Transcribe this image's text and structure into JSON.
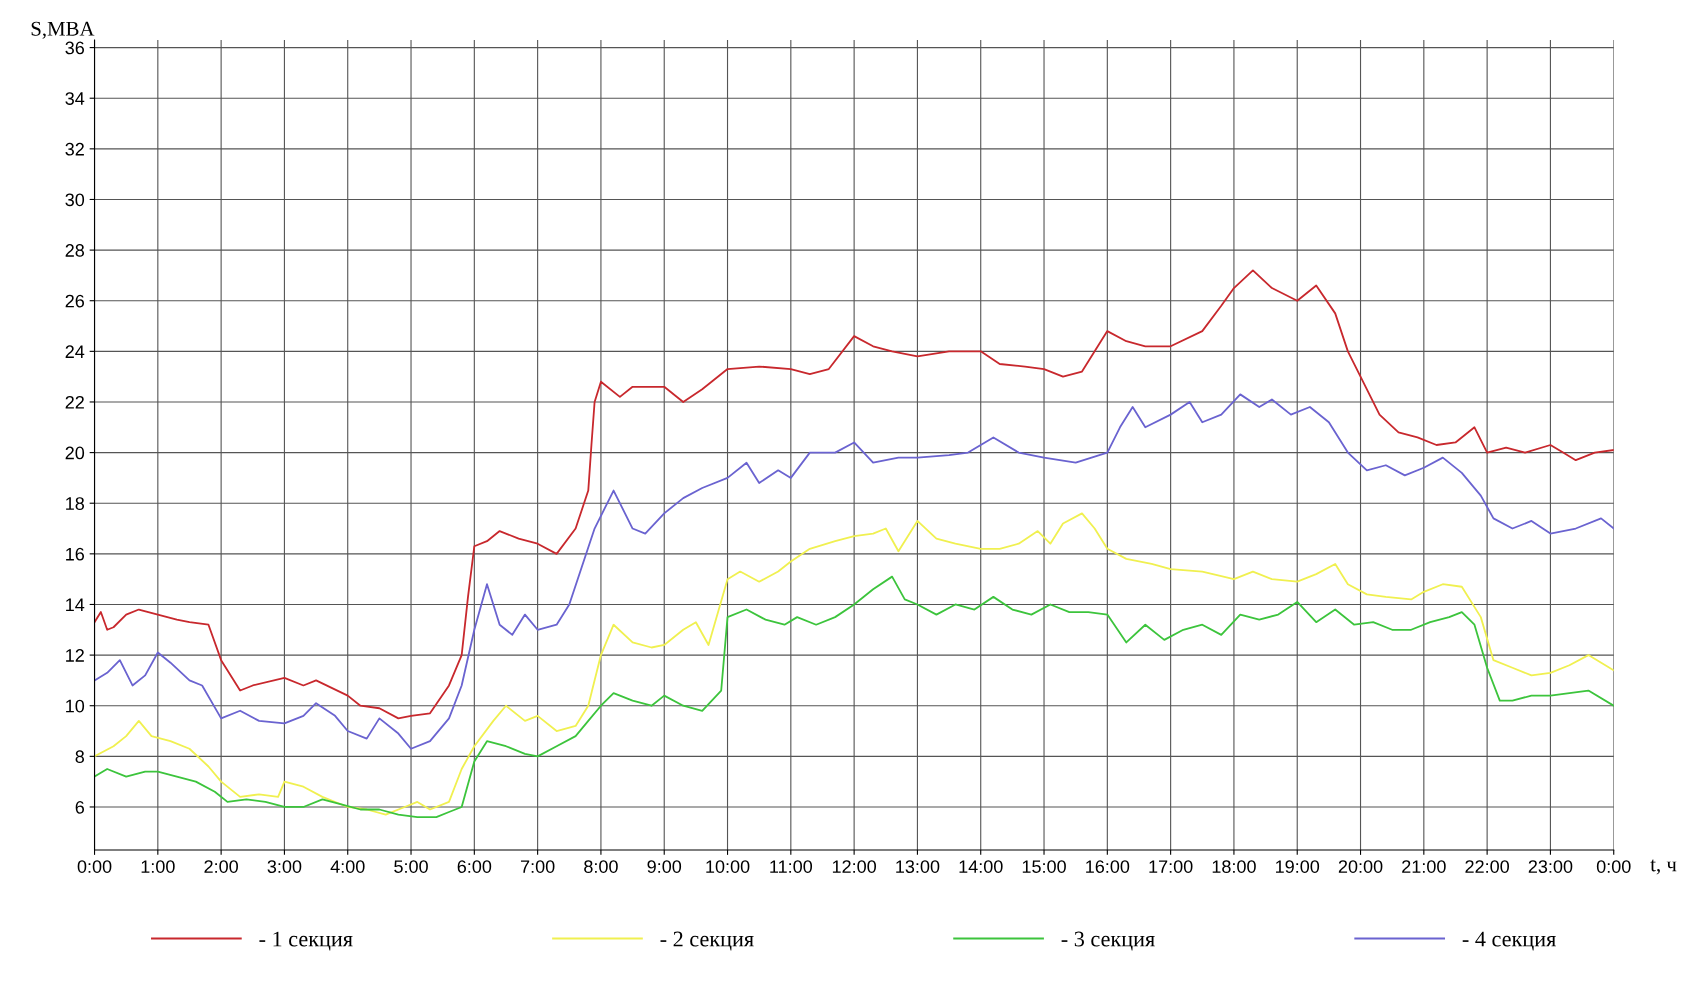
{
  "chart_data": {
    "type": "line",
    "xlabel": "t, ч",
    "ylabel": "S,MBA",
    "xlim": [
      0,
      24
    ],
    "ylim": [
      4.3,
      36.3
    ],
    "xticks": [
      {
        "value": 0,
        "label": "0:00"
      },
      {
        "value": 1,
        "label": "1:00"
      },
      {
        "value": 2,
        "label": "2:00"
      },
      {
        "value": 3,
        "label": "3:00"
      },
      {
        "value": 4,
        "label": "4:00"
      },
      {
        "value": 5,
        "label": "5:00"
      },
      {
        "value": 6,
        "label": "6:00"
      },
      {
        "value": 7,
        "label": "7:00"
      },
      {
        "value": 8,
        "label": "8:00"
      },
      {
        "value": 9,
        "label": "9:00"
      },
      {
        "value": 10,
        "label": "10:00"
      },
      {
        "value": 11,
        "label": "11:00"
      },
      {
        "value": 12,
        "label": "12:00"
      },
      {
        "value": 13,
        "label": "13:00"
      },
      {
        "value": 14,
        "label": "14:00"
      },
      {
        "value": 15,
        "label": "15:00"
      },
      {
        "value": 16,
        "label": "16:00"
      },
      {
        "value": 17,
        "label": "17:00"
      },
      {
        "value": 18,
        "label": "18:00"
      },
      {
        "value": 19,
        "label": "19:00"
      },
      {
        "value": 20,
        "label": "20:00"
      },
      {
        "value": 21,
        "label": "21:00"
      },
      {
        "value": 22,
        "label": "22:00"
      },
      {
        "value": 23,
        "label": "23:00"
      },
      {
        "value": 24,
        "label": "0:00"
      }
    ],
    "yticks": [
      6,
      8,
      10,
      12,
      14,
      16,
      18,
      20,
      22,
      24,
      26,
      28,
      30,
      32,
      34,
      36
    ],
    "grid": true,
    "legend": "bottom",
    "marker": "none",
    "line_style": "solid",
    "series": [
      {
        "name": "- 1 секция",
        "color": "#c8282d",
        "x": [
          0,
          0.1,
          0.2,
          0.3,
          0.5,
          0.7,
          1.0,
          1.3,
          1.5,
          1.8,
          2.0,
          2.3,
          2.5,
          3.0,
          3.3,
          3.5,
          4.0,
          4.2,
          4.5,
          4.8,
          5.0,
          5.3,
          5.6,
          5.8,
          5.9,
          6.0,
          6.2,
          6.4,
          6.7,
          7.0,
          7.3,
          7.6,
          7.8,
          7.85,
          7.9,
          8.0,
          8.3,
          8.5,
          9.0,
          9.3,
          9.6,
          10.0,
          10.5,
          11.0,
          11.3,
          11.6,
          12.0,
          12.3,
          12.6,
          13.0,
          13.5,
          14.0,
          14.3,
          14.7,
          15.0,
          15.3,
          15.6,
          16.0,
          16.3,
          16.6,
          17.0,
          17.5,
          17.8,
          18.0,
          18.3,
          18.6,
          19.0,
          19.3,
          19.6,
          19.8,
          20.0,
          20.3,
          20.6,
          20.9,
          21.2,
          21.5,
          21.8,
          22.0,
          22.3,
          22.6,
          23.0,
          23.2,
          23.4,
          23.7,
          24.0
        ],
        "values": [
          13.3,
          13.7,
          13.0,
          13.1,
          13.6,
          13.8,
          13.6,
          13.4,
          13.3,
          13.2,
          11.8,
          10.6,
          10.8,
          11.1,
          10.8,
          11.0,
          10.4,
          10.0,
          9.9,
          9.5,
          9.6,
          9.7,
          10.8,
          12.0,
          14.3,
          16.3,
          16.5,
          16.9,
          16.6,
          16.4,
          16.0,
          17.0,
          18.5,
          20.3,
          22.0,
          22.8,
          22.2,
          22.6,
          22.6,
          22.0,
          22.5,
          23.3,
          23.4,
          23.3,
          23.1,
          23.3,
          24.6,
          24.2,
          24.0,
          23.8,
          24.0,
          24.0,
          23.5,
          23.4,
          23.3,
          23.0,
          23.2,
          24.8,
          24.4,
          24.2,
          24.2,
          24.8,
          25.8,
          26.5,
          27.2,
          26.5,
          26.0,
          26.6,
          25.5,
          24.0,
          23.0,
          21.5,
          20.8,
          20.6,
          20.3,
          20.4,
          21.0,
          20.0,
          20.2,
          20.0,
          20.3,
          20.0,
          19.7,
          20.0,
          20.1
        ]
      },
      {
        "name": "- 2 секция",
        "color": "#f0f050",
        "x": [
          0,
          0.3,
          0.5,
          0.7,
          0.9,
          1.2,
          1.5,
          1.8,
          2.0,
          2.3,
          2.6,
          2.9,
          3.0,
          3.3,
          3.6,
          4.0,
          4.3,
          4.6,
          4.9,
          5.1,
          5.3,
          5.6,
          5.8,
          6.0,
          6.3,
          6.5,
          6.8,
          7.0,
          7.3,
          7.6,
          7.8,
          8.0,
          8.2,
          8.5,
          8.8,
          9.0,
          9.3,
          9.5,
          9.7,
          10.0,
          10.2,
          10.5,
          10.8,
          11.0,
          11.3,
          11.7,
          12.0,
          12.3,
          12.5,
          12.7,
          13.0,
          13.3,
          13.6,
          14.0,
          14.3,
          14.6,
          14.9,
          15.1,
          15.3,
          15.6,
          15.8,
          16.0,
          16.3,
          16.7,
          17.0,
          17.5,
          18.0,
          18.3,
          18.6,
          19.0,
          19.3,
          19.6,
          19.8,
          20.1,
          20.4,
          20.8,
          21.0,
          21.3,
          21.6,
          21.9,
          22.1,
          22.4,
          22.7,
          23.0,
          23.3,
          23.6,
          24.0
        ],
        "values": [
          8.0,
          8.4,
          8.8,
          9.4,
          8.8,
          8.6,
          8.3,
          7.6,
          7.0,
          6.4,
          6.5,
          6.4,
          7.0,
          6.8,
          6.4,
          6.0,
          5.9,
          5.7,
          6.0,
          6.2,
          5.9,
          6.2,
          7.5,
          8.4,
          9.4,
          10.0,
          9.4,
          9.6,
          9.0,
          9.2,
          10.0,
          12.0,
          13.2,
          12.5,
          12.3,
          12.4,
          13.0,
          13.3,
          12.4,
          15.0,
          15.3,
          14.9,
          15.3,
          15.7,
          16.2,
          16.5,
          16.7,
          16.8,
          17.0,
          16.1,
          17.3,
          16.6,
          16.4,
          16.2,
          16.2,
          16.4,
          16.9,
          16.4,
          17.2,
          17.6,
          17.0,
          16.2,
          15.8,
          15.6,
          15.4,
          15.3,
          15.0,
          15.3,
          15.0,
          14.9,
          15.2,
          15.6,
          14.8,
          14.4,
          14.3,
          14.2,
          14.5,
          14.8,
          14.7,
          13.5,
          11.8,
          11.5,
          11.2,
          11.3,
          11.6,
          12.0,
          11.4
        ]
      },
      {
        "name": "- 3 секция",
        "color": "#3cc43c",
        "x": [
          0,
          0.2,
          0.5,
          0.8,
          1.0,
          1.3,
          1.6,
          1.9,
          2.1,
          2.4,
          2.7,
          3.0,
          3.3,
          3.6,
          3.9,
          4.2,
          4.5,
          4.8,
          5.1,
          5.4,
          5.6,
          5.8,
          6.0,
          6.2,
          6.5,
          6.8,
          7.0,
          7.3,
          7.6,
          7.8,
          8.0,
          8.2,
          8.5,
          8.8,
          9.0,
          9.3,
          9.6,
          9.9,
          10.0,
          10.3,
          10.6,
          10.9,
          11.1,
          11.4,
          11.7,
          12.0,
          12.3,
          12.6,
          12.8,
          13.0,
          13.3,
          13.6,
          13.9,
          14.2,
          14.5,
          14.8,
          15.1,
          15.4,
          15.7,
          16.0,
          16.3,
          16.6,
          16.9,
          17.2,
          17.5,
          17.8,
          18.1,
          18.4,
          18.7,
          19.0,
          19.3,
          19.6,
          19.9,
          20.2,
          20.5,
          20.8,
          21.1,
          21.4,
          21.6,
          21.8,
          22.0,
          22.2,
          22.4,
          22.7,
          23.0,
          23.3,
          23.6,
          24.0
        ],
        "values": [
          7.2,
          7.5,
          7.2,
          7.4,
          7.4,
          7.2,
          7.0,
          6.6,
          6.2,
          6.3,
          6.2,
          6.0,
          6.0,
          6.3,
          6.1,
          5.9,
          5.9,
          5.7,
          5.6,
          5.6,
          5.8,
          6.0,
          7.8,
          8.6,
          8.4,
          8.1,
          8.0,
          8.4,
          8.8,
          9.4,
          10.0,
          10.5,
          10.2,
          10.0,
          10.4,
          10.0,
          9.8,
          10.6,
          13.5,
          13.8,
          13.4,
          13.2,
          13.5,
          13.2,
          13.5,
          14.0,
          14.6,
          15.1,
          14.2,
          14.0,
          13.6,
          14.0,
          13.8,
          14.3,
          13.8,
          13.6,
          14.0,
          13.7,
          13.7,
          13.6,
          12.5,
          13.2,
          12.6,
          13.0,
          13.2,
          12.8,
          13.6,
          13.4,
          13.6,
          14.1,
          13.3,
          13.8,
          13.2,
          13.3,
          13.0,
          13.0,
          13.3,
          13.5,
          13.7,
          13.2,
          11.5,
          10.2,
          10.2,
          10.4,
          10.4,
          10.5,
          10.6,
          10.0
        ]
      },
      {
        "name": "- 4 секция",
        "color": "#6a63d0",
        "x": [
          0,
          0.2,
          0.4,
          0.6,
          0.8,
          1.0,
          1.2,
          1.5,
          1.7,
          2.0,
          2.3,
          2.6,
          3.0,
          3.3,
          3.5,
          3.8,
          4.0,
          4.3,
          4.5,
          4.8,
          5.0,
          5.3,
          5.6,
          5.8,
          6.0,
          6.2,
          6.4,
          6.6,
          6.8,
          7.0,
          7.3,
          7.5,
          7.7,
          7.9,
          8.2,
          8.5,
          8.7,
          9.0,
          9.3,
          9.6,
          10.0,
          10.3,
          10.5,
          10.8,
          11.0,
          11.3,
          11.7,
          12.0,
          12.3,
          12.7,
          13.0,
          13.5,
          13.8,
          14.2,
          14.6,
          15.0,
          15.5,
          16.0,
          16.2,
          16.4,
          16.6,
          17.0,
          17.3,
          17.5,
          17.8,
          18.1,
          18.4,
          18.6,
          18.9,
          19.2,
          19.5,
          19.8,
          20.1,
          20.4,
          20.7,
          21.0,
          21.3,
          21.6,
          21.9,
          22.1,
          22.4,
          22.7,
          23.0,
          23.4,
          23.8,
          24.0
        ],
        "values": [
          11.0,
          11.3,
          11.8,
          10.8,
          11.2,
          12.1,
          11.7,
          11.0,
          10.8,
          9.5,
          9.8,
          9.4,
          9.3,
          9.6,
          10.1,
          9.6,
          9.0,
          8.7,
          9.5,
          8.9,
          8.3,
          8.6,
          9.5,
          10.8,
          13.0,
          14.8,
          13.2,
          12.8,
          13.6,
          13.0,
          13.2,
          14.0,
          15.5,
          17.0,
          18.5,
          17.0,
          16.8,
          17.6,
          18.2,
          18.6,
          19.0,
          19.6,
          18.8,
          19.3,
          19.0,
          20.0,
          20.0,
          20.4,
          19.6,
          19.8,
          19.8,
          19.9,
          20.0,
          20.6,
          20.0,
          19.8,
          19.6,
          20.0,
          21.0,
          21.8,
          21.0,
          21.5,
          22.0,
          21.2,
          21.5,
          22.3,
          21.8,
          22.1,
          21.5,
          21.8,
          21.2,
          20.0,
          19.3,
          19.5,
          19.1,
          19.4,
          19.8,
          19.2,
          18.3,
          17.4,
          17.0,
          17.3,
          16.8,
          17.0,
          17.4,
          17.0
        ]
      }
    ]
  }
}
